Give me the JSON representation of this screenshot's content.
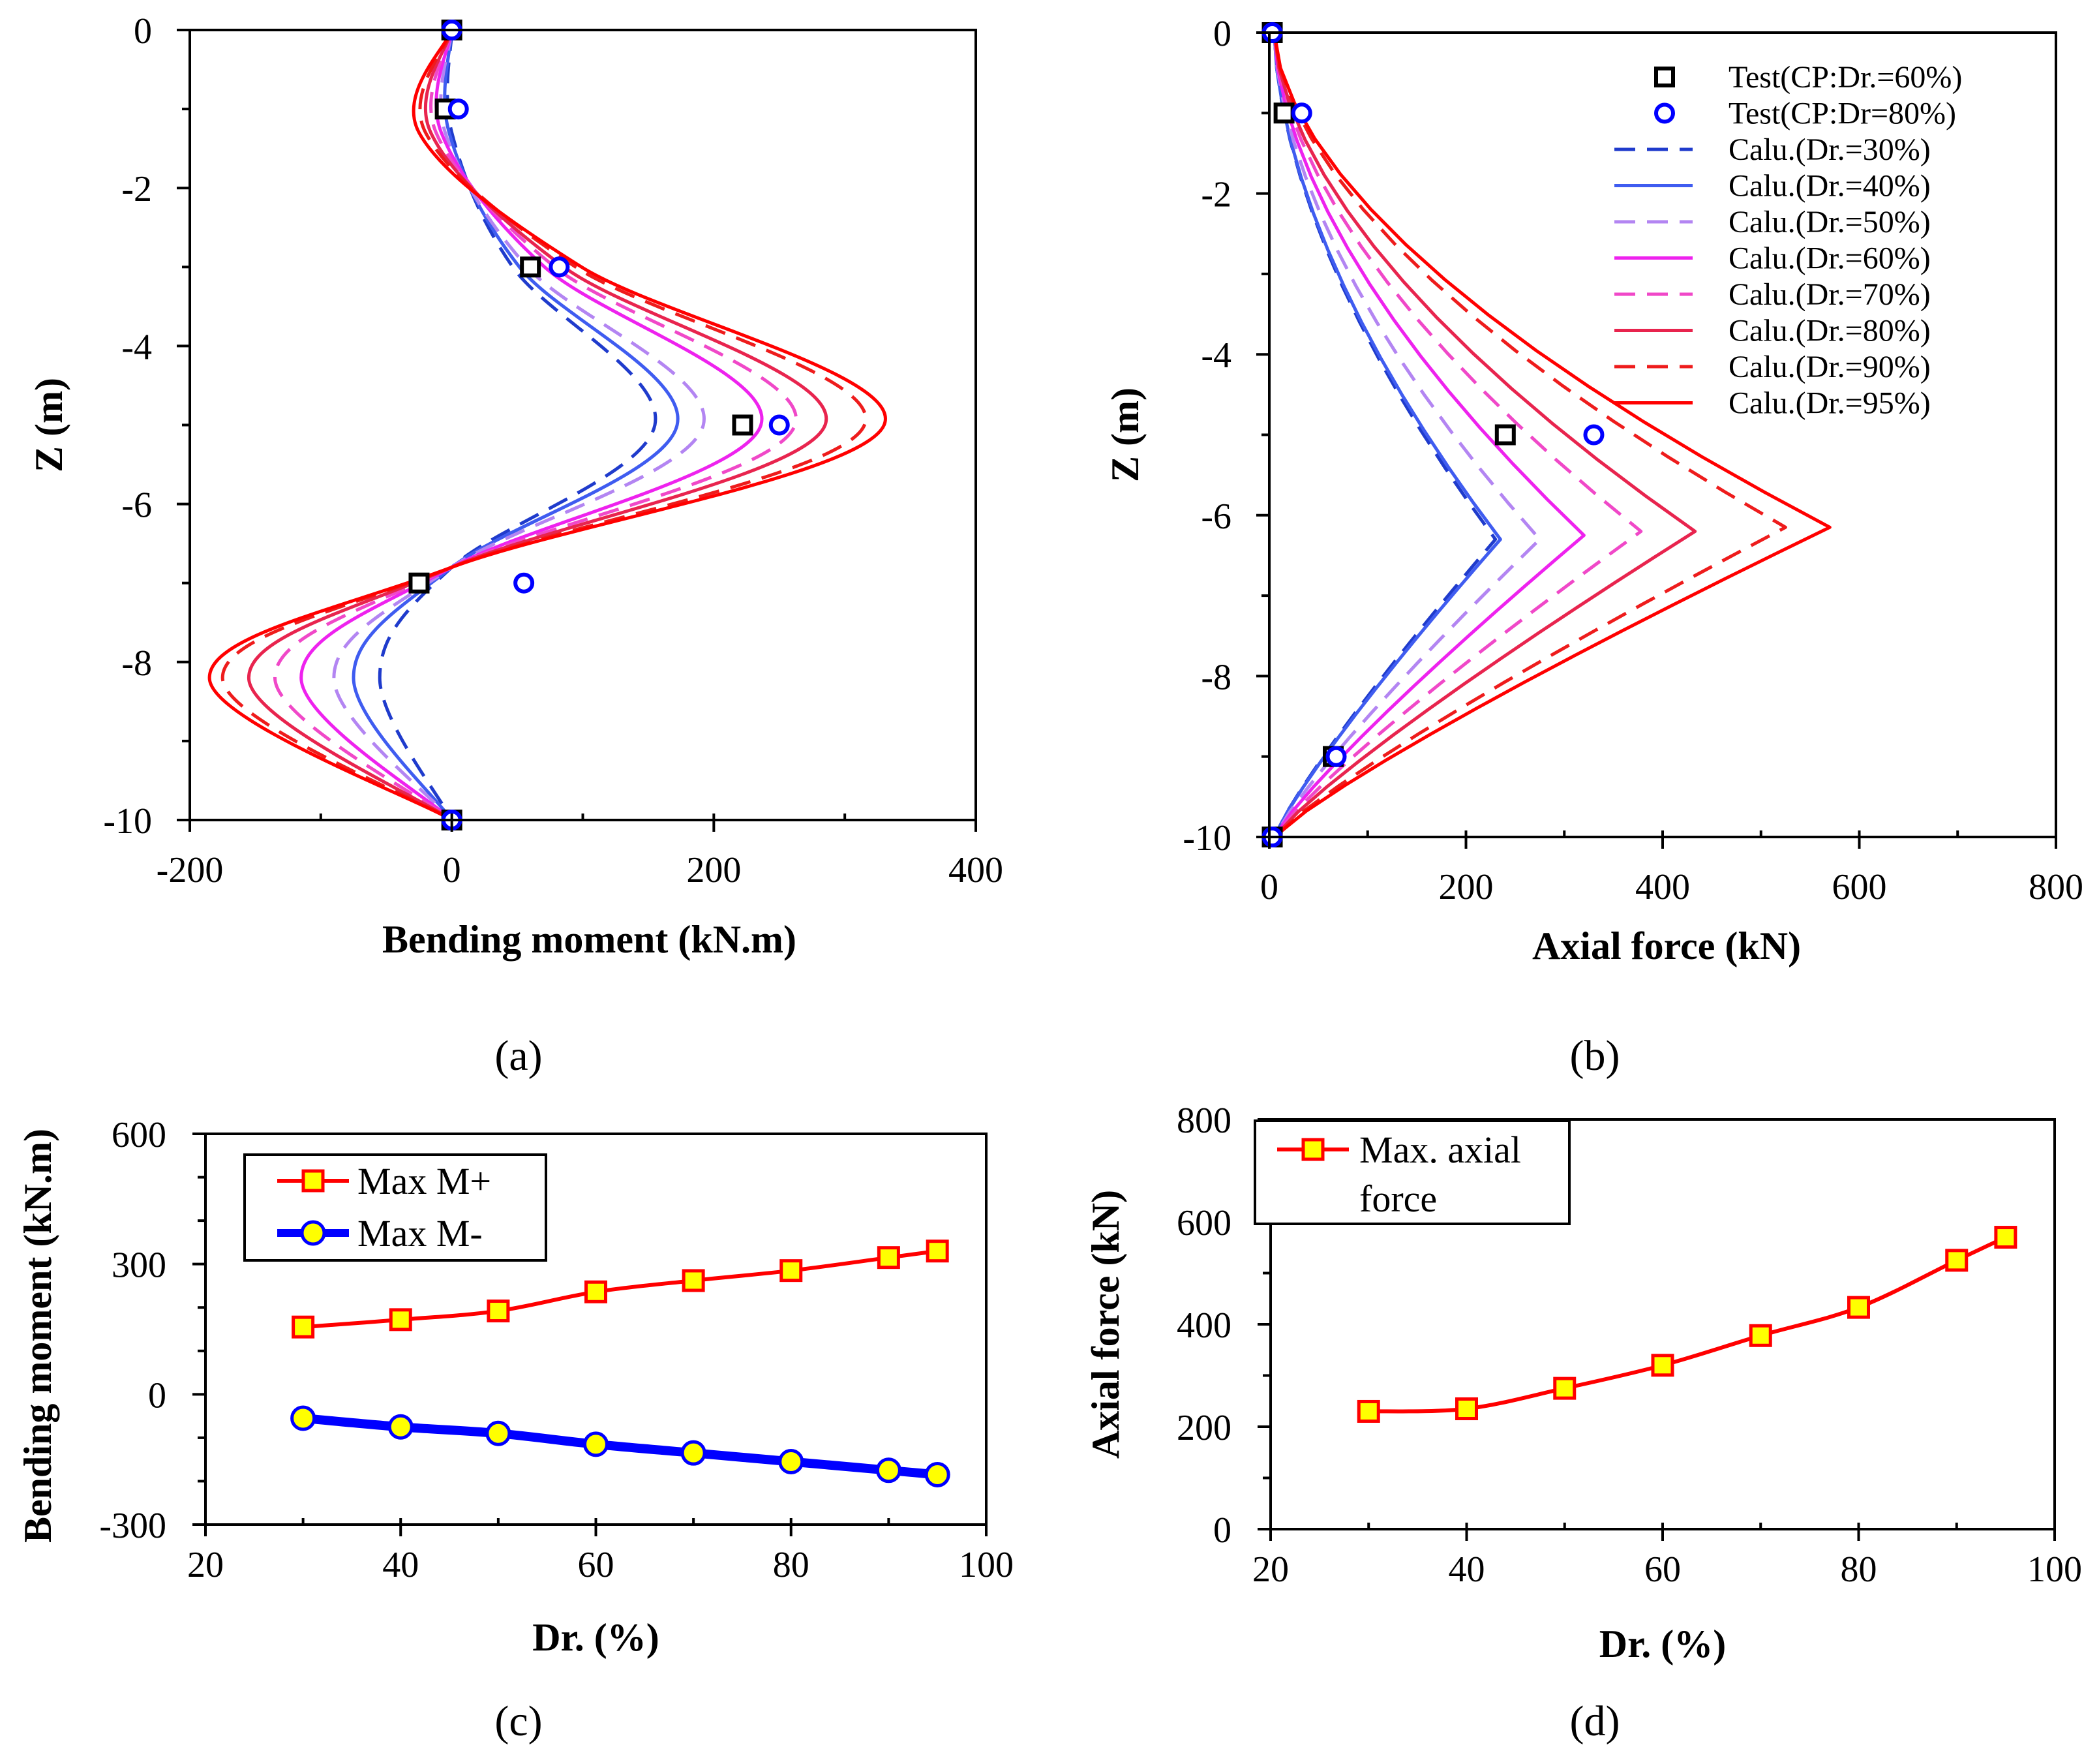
{
  "chart_data": [
    {
      "panel": "a",
      "panel_label": "(a)",
      "type": "line",
      "xlabel": "Bending moment (kN.m)",
      "ylabel": "Z (m)",
      "xlim": [
        -200,
        400
      ],
      "ylim": [
        -10,
        0
      ],
      "xticks": [
        -200,
        0,
        200,
        400
      ],
      "yticks": [
        0,
        -2,
        -4,
        -6,
        -8,
        -10
      ],
      "series": [
        {
          "name": "Calu.(Dr.=30%)",
          "color": "#1f3bcc",
          "dash": "dash",
          "Mpos": 155,
          "Mneg": -55,
          "xmin1": 0
        },
        {
          "name": "Calu.(Dr.=40%)",
          "color": "#3f5cf0",
          "dash": "solid",
          "Mpos": 172,
          "Mneg": -75,
          "xmin1": -2
        },
        {
          "name": "Calu.(Dr.=50%)",
          "color": "#b385f2",
          "dash": "dash",
          "Mpos": 192,
          "Mneg": -90,
          "xmin1": -5
        },
        {
          "name": "Calu.(Dr.=60%)",
          "color": "#ee22ee",
          "dash": "solid",
          "Mpos": 236,
          "Mneg": -115,
          "xmin1": -8
        },
        {
          "name": "Calu.(Dr.=70%)",
          "color": "#f048c8",
          "dash": "dash",
          "Mpos": 262,
          "Mneg": -135,
          "xmin1": -12
        },
        {
          "name": "Calu.(Dr.=80%)",
          "color": "#e8244e",
          "dash": "solid",
          "Mpos": 285,
          "Mneg": -155,
          "xmin1": -16
        },
        {
          "name": "Calu.(Dr.=90%)",
          "color": "#ee1c1c",
          "dash": "dash",
          "Mpos": 315,
          "Mneg": -175,
          "xmin1": -20
        },
        {
          "name": "Calu.(Dr.=95%)",
          "color": "#ff0000",
          "dash": "solid",
          "Mpos": 330,
          "Mneg": -185,
          "xmin1": -25
        }
      ],
      "test_points": [
        {
          "name": "Test(CP:Dr.=60%)",
          "marker": "square",
          "color": "#000000",
          "points": [
            [
              0,
              0
            ],
            [
              -5,
              -1
            ],
            [
              60,
              -3
            ],
            [
              222,
              -5
            ],
            [
              -25,
              -7
            ],
            [
              0,
              -10
            ]
          ]
        },
        {
          "name": "Test(CP:Dr=80%)",
          "marker": "circle",
          "color": "#0000ff",
          "points": [
            [
              0,
              0
            ],
            [
              5,
              -1
            ],
            [
              82,
              -3
            ],
            [
              250,
              -5
            ],
            [
              55,
              -7
            ],
            [
              0,
              -10
            ]
          ]
        }
      ]
    },
    {
      "panel": "b",
      "panel_label": "(b)",
      "type": "line",
      "xlabel": "Axial force (kN)",
      "ylabel": "Z (m)",
      "xlim": [
        0,
        800
      ],
      "ylim": [
        -10,
        0
      ],
      "xticks": [
        0,
        200,
        400,
        600,
        800
      ],
      "yticks": [
        0,
        -2,
        -4,
        -6,
        -8,
        -10
      ],
      "legend_position": "top-right",
      "series": [
        {
          "name": "Calu.(Dr.=30%)",
          "color": "#1f3bcc",
          "dash": "dash",
          "peak_x": 230,
          "peak_z": -6.3
        },
        {
          "name": "Calu.(Dr.=40%)",
          "color": "#3f5cf0",
          "dash": "solid",
          "peak_x": 235,
          "peak_z": -6.3
        },
        {
          "name": "Calu.(Dr.=50%)",
          "color": "#b385f2",
          "dash": "dash",
          "peak_x": 275,
          "peak_z": -6.3
        },
        {
          "name": "Calu.(Dr.=60%)",
          "color": "#ee22ee",
          "dash": "solid",
          "peak_x": 320,
          "peak_z": -6.25
        },
        {
          "name": "Calu.(Dr.=70%)",
          "color": "#f048c8",
          "dash": "dash",
          "peak_x": 378,
          "peak_z": -6.2
        },
        {
          "name": "Calu.(Dr.=80%)",
          "color": "#e8244e",
          "dash": "solid",
          "peak_x": 433,
          "peak_z": -6.2
        },
        {
          "name": "Calu.(Dr.=90%)",
          "color": "#ee1c1c",
          "dash": "dash",
          "peak_x": 525,
          "peak_z": -6.15
        },
        {
          "name": "Calu.(Dr.=95%)",
          "color": "#ff0000",
          "dash": "solid",
          "peak_x": 570,
          "peak_z": -6.15
        }
      ],
      "test_points": [
        {
          "name": "Test(CP:Dr.=60%)",
          "marker": "square",
          "color": "#000000",
          "points": [
            [
              3,
              0
            ],
            [
              15,
              -1
            ],
            [
              240,
              -5
            ],
            [
              65,
              -9
            ],
            [
              3,
              -10
            ]
          ]
        },
        {
          "name": "Test(CP:Dr=80%)",
          "marker": "circle",
          "color": "#0000ff",
          "points": [
            [
              3,
              0
            ],
            [
              33,
              -1
            ],
            [
              330,
              -5
            ],
            [
              68,
              -9
            ],
            [
              3,
              -10
            ]
          ]
        }
      ]
    },
    {
      "panel": "c",
      "panel_label": "(c)",
      "type": "line",
      "xlabel": "Dr. (%)",
      "ylabel": "Bending moment (kN.m)",
      "xlim": [
        20,
        100
      ],
      "ylim": [
        -300,
        600
      ],
      "xticks": [
        20,
        40,
        60,
        80,
        100
      ],
      "yticks": [
        600,
        300,
        0,
        -300
      ],
      "legend_position": "top-left",
      "x": [
        30,
        40,
        50,
        60,
        70,
        80,
        90,
        95
      ],
      "series": [
        {
          "name": "Max M+",
          "color": "#ff0000",
          "marker": "square",
          "values": [
            155,
            172,
            192,
            236,
            262,
            285,
            315,
            330
          ]
        },
        {
          "name": "Max M-",
          "color": "#0000ff",
          "marker": "circle",
          "values": [
            -55,
            -75,
            -90,
            -115,
            -135,
            -155,
            -175,
            -185
          ]
        }
      ]
    },
    {
      "panel": "d",
      "panel_label": "(d)",
      "type": "line",
      "xlabel": "Dr. (%)",
      "ylabel": "Axial force (kN)",
      "xlim": [
        20,
        100
      ],
      "ylim": [
        0,
        800
      ],
      "xticks": [
        20,
        40,
        60,
        80,
        100
      ],
      "yticks": [
        800,
        600,
        400,
        200,
        0
      ],
      "legend_position": "top-left",
      "x": [
        30,
        40,
        50,
        60,
        70,
        80,
        90,
        95
      ],
      "series": [
        {
          "name": "Max. axial force",
          "legend_lines": [
            "Max. axial",
            "force"
          ],
          "color": "#ff0000",
          "marker": "square",
          "values": [
            230,
            235,
            275,
            320,
            378,
            433,
            525,
            570
          ]
        }
      ]
    }
  ]
}
